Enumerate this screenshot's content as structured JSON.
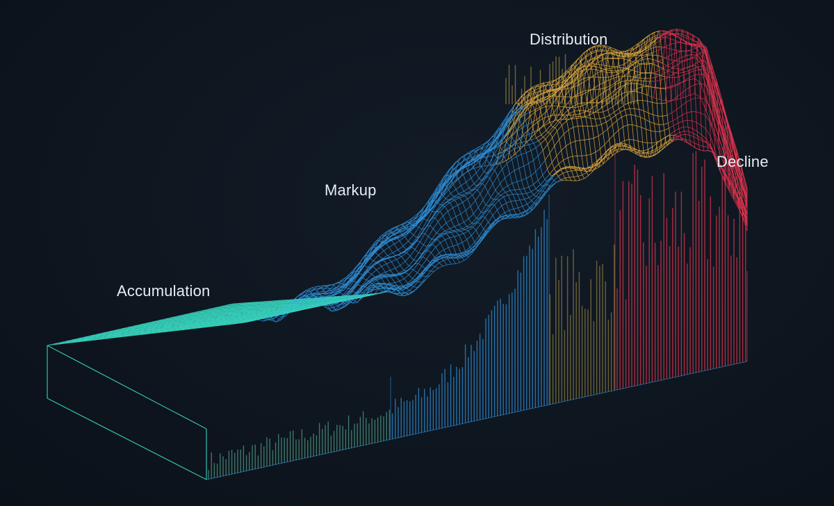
{
  "labels": {
    "accumulation": "Accumulation",
    "markup": "Markup",
    "distribution": "Distribution",
    "decline": "Decline"
  },
  "colors": {
    "background": "#0e1620",
    "label_text": "#e8edf2",
    "accumulation": "#38d6c0",
    "markup": "#2f8fd8",
    "distribution": "#e2a93c",
    "decline": "#e0344f",
    "distribution_bars": "#8a7a3e",
    "accumulation_bars": "#4f9a82"
  }
}
